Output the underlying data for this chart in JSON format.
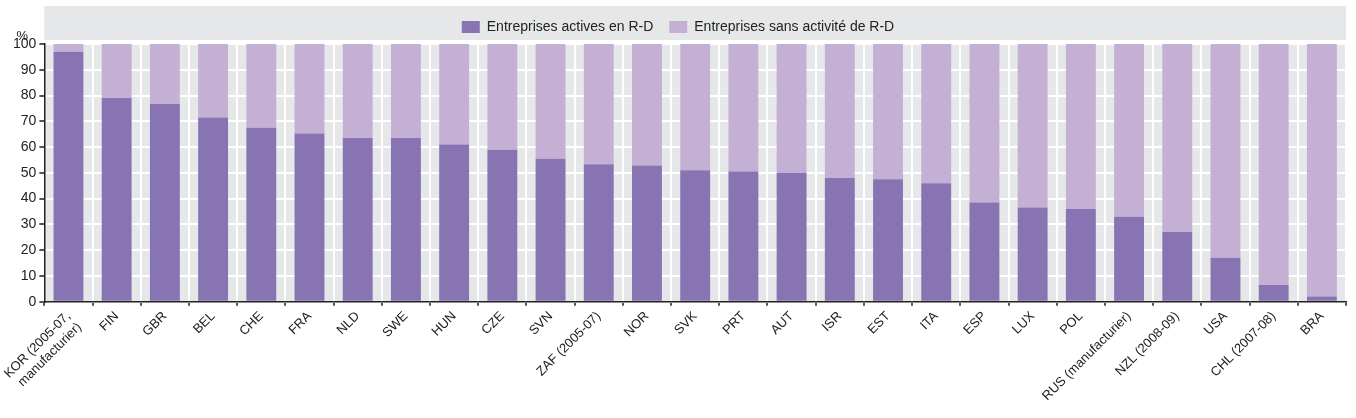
{
  "chart_data": {
    "type": "bar",
    "stacked": true,
    "ylabel": "%",
    "categories": [
      "KOR (2005-07, manufacturier)",
      "FIN",
      "GBR",
      "BEL",
      "CHE",
      "FRA",
      "NLD",
      "SWE",
      "HUN",
      "CZE",
      "SVN",
      "ZAF (2005-07)",
      "NOR",
      "SVK",
      "PRT",
      "AUT",
      "ISR",
      "EST",
      "ITA",
      "ESP",
      "LUX",
      "POL",
      "RUS (manufacturier)",
      "NZL (2008-09)",
      "USA",
      "CHL (2007-08)",
      "BRA"
    ],
    "series": [
      {
        "name": "Entreprises actives en R-D",
        "color": "#8873b3",
        "values": [
          97,
          79,
          76.7,
          71.5,
          67.5,
          65.3,
          63.5,
          63.5,
          61,
          59,
          55.5,
          53.3,
          52.8,
          51,
          50.5,
          50,
          48,
          47.5,
          46,
          38.5,
          36.5,
          36,
          33,
          27,
          17,
          6.5,
          2
        ]
      },
      {
        "name": "Entreprises sans activité de R-D",
        "color": "#c5b0d5",
        "values": [
          3,
          21,
          23.3,
          28.5,
          32.5,
          34.7,
          36.5,
          36.5,
          39,
          41,
          44.5,
          46.7,
          47.2,
          49,
          49.5,
          50,
          52,
          52.5,
          54,
          61.5,
          63.5,
          64,
          67,
          73,
          83,
          93.5,
          98
        ]
      }
    ],
    "ylim": [
      0,
      100
    ],
    "yticks": [
      0,
      10,
      20,
      30,
      40,
      50,
      60,
      70,
      80,
      90,
      100
    ],
    "grid": true,
    "legend": "top"
  }
}
